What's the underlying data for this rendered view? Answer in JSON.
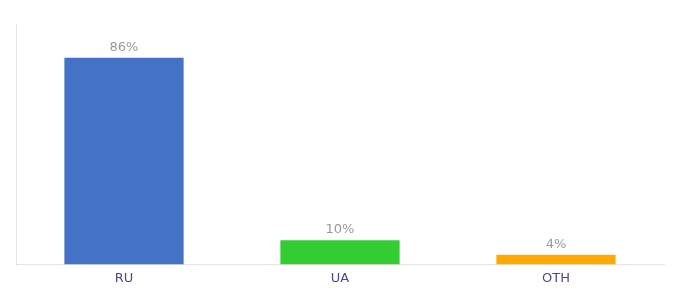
{
  "chart_data": {
    "type": "bar",
    "categories": [
      "RU",
      "UA",
      "OTH"
    ],
    "values": [
      86,
      10,
      4
    ],
    "value_labels": [
      "86%",
      "10%",
      "4%"
    ],
    "colors": [
      "#4472c4",
      "#33cc33",
      "#ffaa00"
    ],
    "ylim": [
      0,
      100
    ],
    "grid": false,
    "tick_labels": "x",
    "data_labels": true
  }
}
